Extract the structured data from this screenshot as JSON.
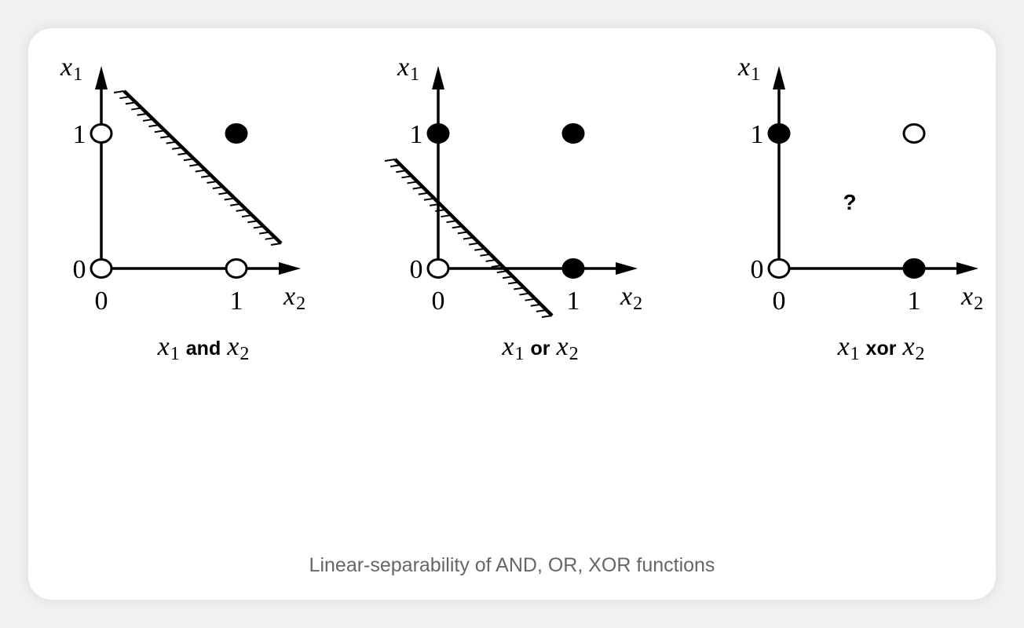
{
  "caption": "Linear-separability of AND, OR, XOR functions",
  "axis": {
    "y_var": "x",
    "y_sub": "1",
    "x_var": "x",
    "x_sub": "2",
    "tick_zero": "0",
    "tick_one": "1"
  },
  "panels": [
    {
      "id": "and",
      "label": {
        "left_var": "x",
        "left_sub": "1",
        "op": "and",
        "right_var": "x",
        "right_sub": "2"
      },
      "points": [
        {
          "x2": 0,
          "x1": 0,
          "filled": false
        },
        {
          "x2": 0,
          "x1": 1,
          "filled": false
        },
        {
          "x2": 1,
          "x1": 0,
          "filled": false
        },
        {
          "x2": 1,
          "x1": 1,
          "filled": true
        }
      ],
      "separator": true,
      "question": ""
    },
    {
      "id": "or",
      "label": {
        "left_var": "x",
        "left_sub": "1",
        "op": "or",
        "right_var": "x",
        "right_sub": "2"
      },
      "points": [
        {
          "x2": 0,
          "x1": 0,
          "filled": false
        },
        {
          "x2": 0,
          "x1": 1,
          "filled": true
        },
        {
          "x2": 1,
          "x1": 0,
          "filled": true
        },
        {
          "x2": 1,
          "x1": 1,
          "filled": true
        }
      ],
      "separator": true,
      "question": ""
    },
    {
      "id": "xor",
      "label": {
        "left_var": "x",
        "left_sub": "1",
        "op": "xor",
        "right_var": "x",
        "right_sub": "2"
      },
      "points": [
        {
          "x2": 0,
          "x1": 0,
          "filled": false
        },
        {
          "x2": 0,
          "x1": 1,
          "filled": true
        },
        {
          "x2": 1,
          "x1": 0,
          "filled": true
        },
        {
          "x2": 1,
          "x1": 1,
          "filled": false
        }
      ],
      "separator": false,
      "question": "?"
    }
  ]
}
